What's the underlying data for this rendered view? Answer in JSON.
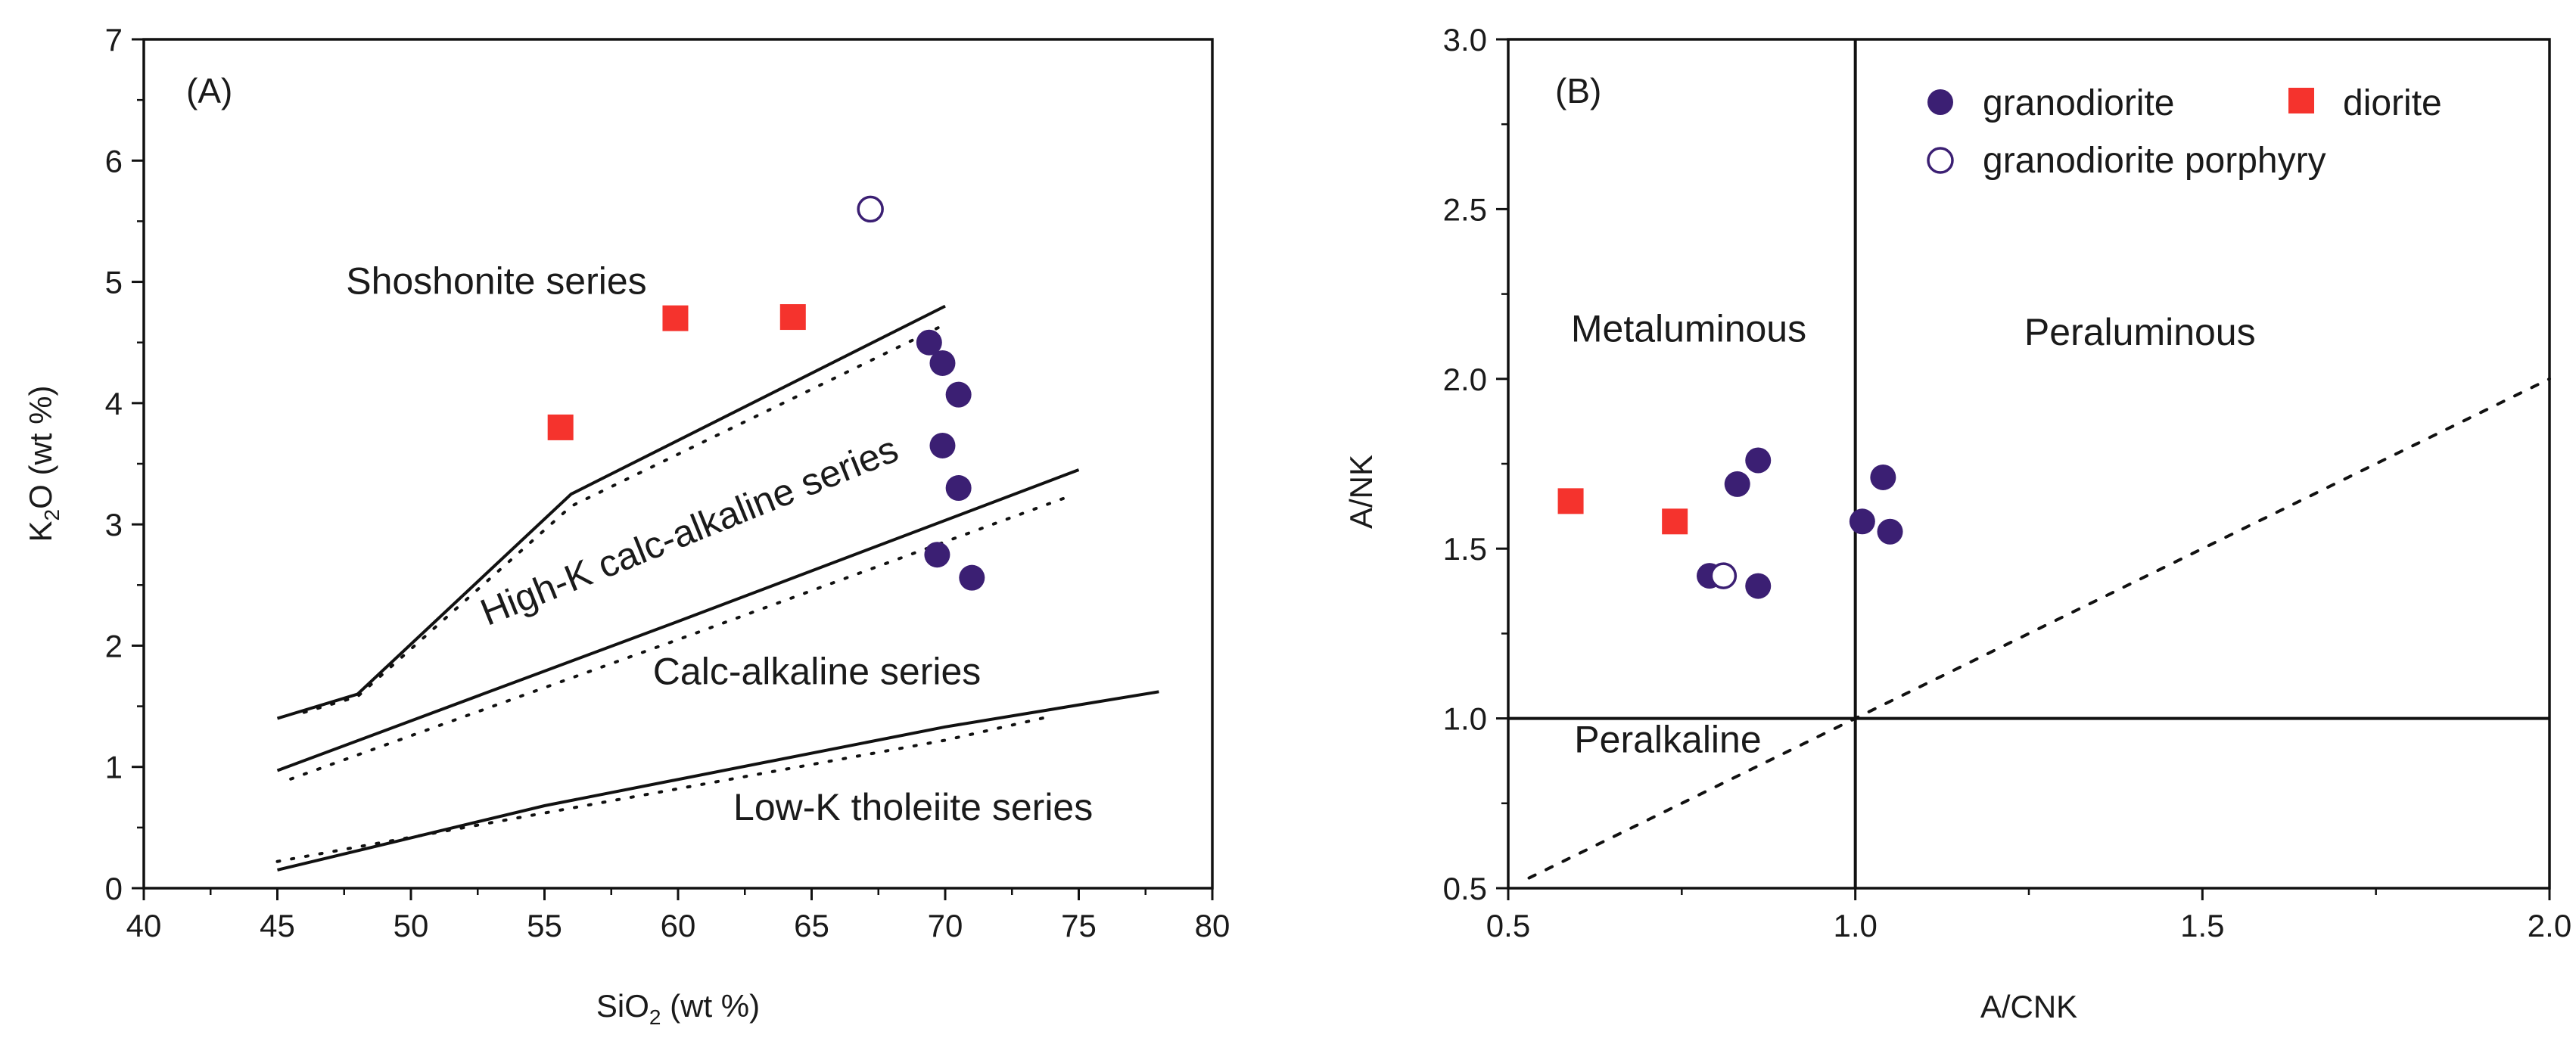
{
  "colors": {
    "granodiorite": "#3b1f73",
    "diorite": "#f5332d",
    "porphyry_stroke": "#3b1f73",
    "line": "#111111"
  },
  "chart_data": [
    {
      "type": "scatter",
      "panel_label": "(A)",
      "xlabel_main": "SiO",
      "xlabel_sub": "2",
      "xlabel_suffix": " (wt %)",
      "ylabel_main": "K",
      "ylabel_sub": "2",
      "ylabel_suffix": "O (wt %)",
      "xlim": [
        40,
        80
      ],
      "ylim": [
        0,
        7
      ],
      "xticks": [
        40,
        45,
        50,
        55,
        60,
        65,
        70,
        75,
        80
      ],
      "yticks": [
        0,
        1,
        2,
        3,
        4,
        5,
        6,
        7
      ],
      "boundaries": {
        "solid": [
          [
            [
              45,
              1.4
            ],
            [
              48,
              1.6
            ],
            [
              56,
              3.25
            ],
            [
              70,
              4.8
            ]
          ],
          [
            [
              45,
              0.97
            ],
            [
              60,
              2.2
            ],
            [
              75,
              3.45
            ]
          ],
          [
            [
              45,
              0.15
            ],
            [
              55,
              0.68
            ],
            [
              70,
              1.33
            ],
            [
              78,
              1.62
            ]
          ]
        ],
        "dotted": [
          [
            [
              46,
              1.45
            ],
            [
              48,
              1.58
            ],
            [
              56,
              3.15
            ],
            [
              70,
              4.65
            ]
          ],
          [
            [
              45.5,
              0.9
            ],
            [
              60,
              2.05
            ],
            [
              74.5,
              3.22
            ]
          ],
          [
            [
              45,
              0.22
            ],
            [
              55,
              0.62
            ],
            [
              70,
              1.22
            ],
            [
              74,
              1.42
            ]
          ]
        ]
      },
      "region_labels": [
        {
          "text": "Shoshonite series",
          "x": 53.2,
          "y": 4.9,
          "angle": 0
        },
        {
          "text": "High-K calc-alkaline series",
          "x": 60.6,
          "y": 2.85,
          "angle": -22
        },
        {
          "text": "Calc-alkaline series",
          "x": 65.2,
          "y": 1.68,
          "angle": 0
        },
        {
          "text": "Low-K  tholeiite  series",
          "x": 68.8,
          "y": 0.56,
          "angle": 0
        }
      ],
      "series": [
        {
          "name": "granodiorite",
          "marker": "filled-circle",
          "points": [
            [
              69.4,
              4.5
            ],
            [
              69.9,
              4.33
            ],
            [
              70.5,
              4.07
            ],
            [
              69.9,
              3.65
            ],
            [
              70.5,
              3.3
            ],
            [
              69.7,
              2.75
            ],
            [
              71.0,
              2.56
            ]
          ]
        },
        {
          "name": "diorite",
          "marker": "square",
          "points": [
            [
              55.6,
              3.8
            ],
            [
              59.9,
              4.7
            ],
            [
              64.3,
              4.71
            ]
          ]
        },
        {
          "name": "granodiorite porphyry",
          "marker": "open-circle",
          "points": [
            [
              67.2,
              5.6
            ]
          ]
        }
      ]
    },
    {
      "type": "scatter",
      "panel_label": "(B)",
      "xlabel": "A/CNK",
      "ylabel": "A/NK",
      "xlim": [
        0.5,
        2.0
      ],
      "ylim": [
        0.5,
        3.0
      ],
      "xticks": [
        "0.5",
        "1.0",
        "1.5",
        "2.0"
      ],
      "yticks": [
        "0.5",
        "1.0",
        "1.5",
        "2.0",
        "2.5",
        "3.0"
      ],
      "boundaries": {
        "solid": [
          [
            [
              1.0,
              0.5
            ],
            [
              1.0,
              3.0
            ]
          ],
          [
            [
              0.5,
              1.0
            ],
            [
              2.0,
              1.0
            ]
          ]
        ],
        "dotted": [
          [
            [
              0.53,
              0.53
            ],
            [
              2.0,
              2.0
            ]
          ]
        ]
      },
      "region_labels": [
        {
          "text": "Metaluminous",
          "x": 0.76,
          "y": 2.11
        },
        {
          "text": "Peraluminous",
          "x": 1.41,
          "y": 2.1
        },
        {
          "text": "Peralkaline",
          "x": 0.73,
          "y": 0.9
        }
      ],
      "legend": [
        {
          "label": "granodiorite",
          "marker": "filled-circle"
        },
        {
          "label": "diorite",
          "marker": "square"
        },
        {
          "label": "granodiorite porphyry",
          "marker": "open-circle"
        }
      ],
      "series": [
        {
          "name": "granodiorite",
          "marker": "filled-circle",
          "points": [
            [
              0.79,
              1.42
            ],
            [
              0.86,
              1.39
            ],
            [
              0.83,
              1.69
            ],
            [
              0.86,
              1.76
            ],
            [
              1.04,
              1.71
            ],
            [
              1.01,
              1.58
            ],
            [
              1.05,
              1.55
            ]
          ]
        },
        {
          "name": "diorite",
          "marker": "square",
          "points": [
            [
              0.59,
              1.64
            ],
            [
              0.74,
              1.58
            ]
          ]
        },
        {
          "name": "granodiorite porphyry",
          "marker": "open-circle",
          "points": [
            [
              0.81,
              1.42
            ]
          ]
        }
      ]
    }
  ]
}
